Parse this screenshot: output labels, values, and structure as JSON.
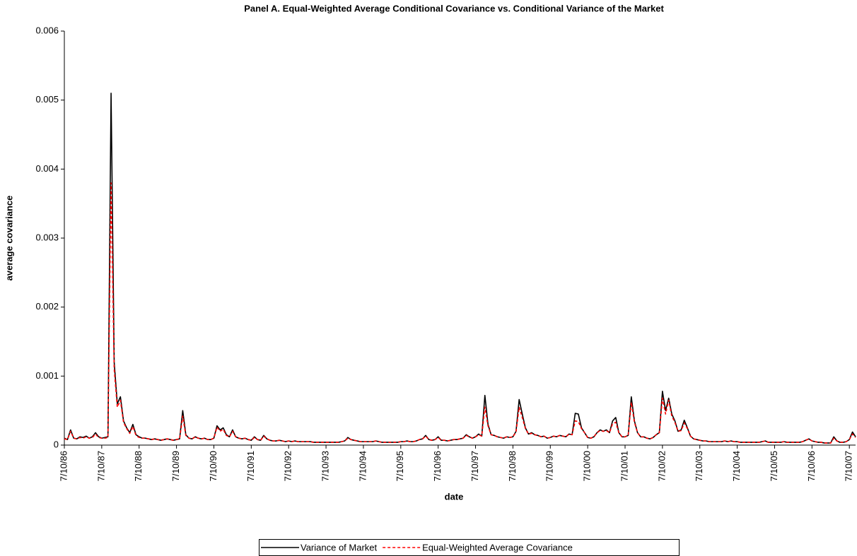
{
  "chart_data": {
    "type": "line",
    "title": "Panel A. Equal-Weighted Average Conditional Covariance vs. Conditional Variance of the Market",
    "x_label": "date",
    "y_label": "average covariance",
    "ylim": [
      0,
      0.006
    ],
    "yticks": [
      0,
      0.001,
      0.002,
      0.003,
      0.004,
      0.005,
      0.006
    ],
    "grid": false,
    "legend": "bottom",
    "categories": [
      "7/10/86",
      null,
      null,
      null,
      null,
      null,
      null,
      null,
      null,
      null,
      null,
      null,
      "7/10/87",
      null,
      null,
      null,
      null,
      null,
      null,
      null,
      null,
      null,
      null,
      null,
      "7/10/88",
      null,
      null,
      null,
      null,
      null,
      null,
      null,
      null,
      null,
      null,
      null,
      "7/10/89",
      null,
      null,
      null,
      null,
      null,
      null,
      null,
      null,
      null,
      null,
      null,
      "7/10/90",
      null,
      null,
      null,
      null,
      null,
      null,
      null,
      null,
      null,
      null,
      null,
      "7/10/91",
      null,
      null,
      null,
      null,
      null,
      null,
      null,
      null,
      null,
      null,
      null,
      "7/10/92",
      null,
      null,
      null,
      null,
      null,
      null,
      null,
      null,
      null,
      null,
      null,
      "7/10/93",
      null,
      null,
      null,
      null,
      null,
      null,
      null,
      null,
      null,
      null,
      null,
      "7/10/94",
      null,
      null,
      null,
      null,
      null,
      null,
      null,
      null,
      null,
      null,
      null,
      "7/10/95",
      null,
      null,
      null,
      null,
      null,
      null,
      null,
      null,
      null,
      null,
      null,
      "7/10/96",
      null,
      null,
      null,
      null,
      null,
      null,
      null,
      null,
      null,
      null,
      null,
      "7/10/97",
      null,
      null,
      null,
      null,
      null,
      null,
      null,
      null,
      null,
      null,
      null,
      "7/10/98",
      null,
      null,
      null,
      null,
      null,
      null,
      null,
      null,
      null,
      null,
      null,
      "7/10/99",
      null,
      null,
      null,
      null,
      null,
      null,
      null,
      null,
      null,
      null,
      null,
      "7/10/00",
      null,
      null,
      null,
      null,
      null,
      null,
      null,
      null,
      null,
      null,
      null,
      "7/10/01",
      null,
      null,
      null,
      null,
      null,
      null,
      null,
      null,
      null,
      null,
      null,
      "7/10/02",
      null,
      null,
      null,
      null,
      null,
      null,
      null,
      null,
      null,
      null,
      null,
      "7/10/03",
      null,
      null,
      null,
      null,
      null,
      null,
      null,
      null,
      null,
      null,
      null,
      "7/10/04",
      null,
      null,
      null,
      null,
      null,
      null,
      null,
      null,
      null,
      null,
      null,
      "7/10/05",
      null,
      null,
      null,
      null,
      null,
      null,
      null,
      null,
      null,
      null,
      null,
      "7/10/06",
      null,
      null,
      null,
      null,
      null,
      null,
      null,
      null,
      null,
      null,
      null,
      "7/10/07",
      null,
      null
    ],
    "series": [
      {
        "name": "Variance of Market",
        "color": "#000000",
        "line_style": "solid",
        "values": [
          0.0001,
          8e-05,
          0.00022,
          0.0001,
          9e-05,
          0.00012,
          0.00011,
          0.00013,
          0.0001,
          0.00012,
          0.00018,
          0.00012,
          0.0001,
          0.00011,
          0.00012,
          0.0051,
          0.0012,
          0.0006,
          0.0007,
          0.00035,
          0.00025,
          0.00018,
          0.0003,
          0.00015,
          0.00012,
          0.0001,
          0.0001,
          9e-05,
          8e-05,
          9e-05,
          8e-05,
          7e-05,
          8e-05,
          9e-05,
          8e-05,
          7e-05,
          8e-05,
          9e-05,
          0.0005,
          0.00015,
          0.0001,
          9e-05,
          0.00012,
          0.0001,
          9e-05,
          0.0001,
          8e-05,
          8e-05,
          0.0001,
          0.00028,
          0.00022,
          0.00025,
          0.00015,
          0.00012,
          0.00022,
          0.00012,
          0.0001,
          9e-05,
          0.0001,
          8e-05,
          7e-05,
          0.00012,
          8e-05,
          7e-05,
          0.00014,
          9e-05,
          7e-05,
          6e-05,
          6e-05,
          7e-05,
          6e-05,
          5e-05,
          6e-05,
          5e-05,
          6e-05,
          5e-05,
          5e-05,
          5e-05,
          5e-05,
          5e-05,
          4e-05,
          4e-05,
          4e-05,
          4e-05,
          4e-05,
          4e-05,
          4e-05,
          4e-05,
          4e-05,
          5e-05,
          6e-05,
          0.00011,
          8e-05,
          7e-05,
          6e-05,
          5e-05,
          5e-05,
          5e-05,
          5e-05,
          5e-05,
          6e-05,
          5e-05,
          4e-05,
          4e-05,
          4e-05,
          4e-05,
          4e-05,
          4e-05,
          5e-05,
          5e-05,
          6e-05,
          5e-05,
          5e-05,
          6e-05,
          8e-05,
          9e-05,
          0.00014,
          8e-05,
          7e-05,
          8e-05,
          0.00012,
          7e-05,
          7e-05,
          6e-05,
          7e-05,
          8e-05,
          8e-05,
          9e-05,
          0.0001,
          0.00015,
          0.00012,
          0.0001,
          0.00012,
          0.00016,
          0.00013,
          0.00072,
          0.0003,
          0.00015,
          0.00014,
          0.00012,
          0.00011,
          0.0001,
          0.00012,
          0.00011,
          0.00012,
          0.0002,
          0.00066,
          0.00045,
          0.00025,
          0.00016,
          0.00018,
          0.00015,
          0.00014,
          0.00012,
          0.00013,
          0.0001,
          0.00011,
          0.00013,
          0.00012,
          0.00014,
          0.00013,
          0.00012,
          0.00016,
          0.00015,
          0.00046,
          0.00045,
          0.00025,
          0.00018,
          0.00011,
          0.0001,
          0.00012,
          0.00018,
          0.00022,
          0.0002,
          0.00022,
          0.00018,
          0.00035,
          0.0004,
          0.00018,
          0.00012,
          0.00012,
          0.00014,
          0.0007,
          0.00035,
          0.00018,
          0.00012,
          0.00012,
          0.0001,
          9e-05,
          0.00011,
          0.00015,
          0.00018,
          0.00078,
          0.0005,
          0.00068,
          0.00045,
          0.00035,
          0.0002,
          0.00022,
          0.00036,
          0.00025,
          0.00013,
          9e-05,
          8e-05,
          7e-05,
          6e-05,
          6e-05,
          5e-05,
          5e-05,
          5e-05,
          5e-05,
          5e-05,
          6e-05,
          5e-05,
          6e-05,
          5e-05,
          5e-05,
          4e-05,
          4e-05,
          4e-05,
          4e-05,
          4e-05,
          4e-05,
          4e-05,
          5e-05,
          6e-05,
          4e-05,
          4e-05,
          4e-05,
          4e-05,
          4e-05,
          5e-05,
          4e-05,
          4e-05,
          4e-05,
          4e-05,
          4e-05,
          5e-05,
          7e-05,
          9e-05,
          6e-05,
          5e-05,
          4e-05,
          4e-05,
          3e-05,
          3e-05,
          3e-05,
          0.00012,
          6e-05,
          4e-05,
          4e-05,
          5e-05,
          8e-05,
          0.00019,
          0.00012
        ]
      },
      {
        "name": "Equal-Weighted Average Covariance",
        "color": "#ff0000",
        "line_style": "dashed",
        "values": [
          9e-05,
          8e-05,
          0.0002,
          0.0001,
          9e-05,
          0.00011,
          0.0001,
          0.00012,
          0.0001,
          0.00011,
          0.00016,
          0.00011,
          0.0001,
          0.0001,
          0.00011,
          0.0038,
          0.0011,
          0.00055,
          0.00065,
          0.00033,
          0.00024,
          0.00017,
          0.00027,
          0.00014,
          0.00011,
          0.0001,
          0.0001,
          9e-05,
          8e-05,
          9e-05,
          8e-05,
          7e-05,
          8e-05,
          9e-05,
          8e-05,
          7e-05,
          8e-05,
          9e-05,
          0.00042,
          0.00014,
          0.0001,
          9e-05,
          0.00012,
          0.0001,
          9e-05,
          0.0001,
          8e-05,
          8e-05,
          0.0001,
          0.00026,
          0.0002,
          0.00023,
          0.00014,
          0.00012,
          0.0002,
          0.00012,
          0.0001,
          9e-05,
          0.0001,
          8e-05,
          7e-05,
          0.00011,
          8e-05,
          7e-05,
          0.00013,
          9e-05,
          7e-05,
          6e-05,
          6e-05,
          7e-05,
          6e-05,
          5e-05,
          6e-05,
          5e-05,
          6e-05,
          5e-05,
          5e-05,
          5e-05,
          5e-05,
          5e-05,
          4e-05,
          4e-05,
          4e-05,
          4e-05,
          4e-05,
          4e-05,
          4e-05,
          4e-05,
          4e-05,
          5e-05,
          6e-05,
          0.0001,
          8e-05,
          7e-05,
          6e-05,
          5e-05,
          5e-05,
          5e-05,
          5e-05,
          5e-05,
          6e-05,
          5e-05,
          4e-05,
          4e-05,
          4e-05,
          4e-05,
          4e-05,
          4e-05,
          5e-05,
          5e-05,
          6e-05,
          5e-05,
          5e-05,
          6e-05,
          8e-05,
          9e-05,
          0.00013,
          8e-05,
          7e-05,
          8e-05,
          0.00011,
          7e-05,
          7e-05,
          6e-05,
          7e-05,
          8e-05,
          8e-05,
          9e-05,
          0.0001,
          0.00014,
          0.00012,
          0.0001,
          0.00012,
          0.00015,
          0.00013,
          0.00055,
          0.00028,
          0.00015,
          0.00014,
          0.00012,
          0.00011,
          0.0001,
          0.00012,
          0.00011,
          0.00012,
          0.00019,
          0.00055,
          0.0004,
          0.00024,
          0.00016,
          0.00017,
          0.00015,
          0.00014,
          0.00012,
          0.00013,
          0.0001,
          0.00011,
          0.00013,
          0.00012,
          0.00014,
          0.00013,
          0.00012,
          0.00016,
          0.00015,
          0.00035,
          0.00034,
          0.00024,
          0.00018,
          0.00011,
          0.0001,
          0.00012,
          0.00018,
          0.00021,
          0.0002,
          0.00021,
          0.00018,
          0.00031,
          0.00033,
          0.00018,
          0.00012,
          0.00012,
          0.00014,
          0.00062,
          0.00033,
          0.00018,
          0.00012,
          0.00012,
          0.0001,
          9e-05,
          0.00011,
          0.00015,
          0.00018,
          0.00068,
          0.00045,
          0.00065,
          0.00042,
          0.00033,
          0.0002,
          0.00021,
          0.00032,
          0.00024,
          0.00013,
          9e-05,
          8e-05,
          7e-05,
          6e-05,
          6e-05,
          5e-05,
          5e-05,
          5e-05,
          5e-05,
          5e-05,
          6e-05,
          5e-05,
          6e-05,
          5e-05,
          5e-05,
          4e-05,
          4e-05,
          4e-05,
          4e-05,
          4e-05,
          4e-05,
          4e-05,
          5e-05,
          6e-05,
          4e-05,
          4e-05,
          4e-05,
          4e-05,
          4e-05,
          5e-05,
          4e-05,
          4e-05,
          4e-05,
          4e-05,
          4e-05,
          5e-05,
          7e-05,
          9e-05,
          6e-05,
          5e-05,
          4e-05,
          4e-05,
          3e-05,
          3e-05,
          3e-05,
          0.0001,
          6e-05,
          4e-05,
          4e-05,
          5e-05,
          8e-05,
          0.00016,
          0.00011
        ]
      }
    ]
  }
}
